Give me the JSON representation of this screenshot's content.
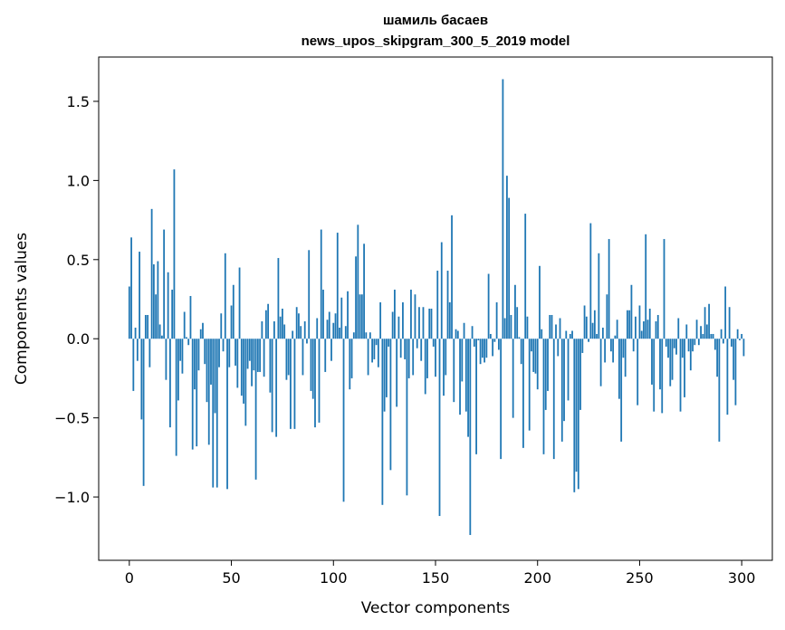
{
  "chart_data": {
    "type": "bar",
    "title_line1": "шамиль басаев",
    "title_line2": "news_upos_skipgram_300_5_2019 model",
    "xlabel": "Vector components",
    "ylabel": "Components values",
    "xlim": [
      -15,
      315
    ],
    "ylim": [
      -1.4,
      1.78
    ],
    "xticks": [
      0,
      50,
      100,
      150,
      200,
      250,
      300
    ],
    "xtick_labels": [
      "0",
      "50",
      "100",
      "150",
      "200",
      "250",
      "300"
    ],
    "yticks": [
      -1.0,
      -0.5,
      0.0,
      0.5,
      1.0,
      1.5
    ],
    "ytick_labels": [
      "−1.0",
      "−0.5",
      "0.0",
      "0.5",
      "1.0",
      "1.5"
    ],
    "grid": false,
    "bar_color": "#1f77b4",
    "x": "0..299",
    "values": [
      0.33,
      0.64,
      -0.33,
      0.07,
      -0.14,
      0.55,
      -0.51,
      -0.93,
      0.15,
      0.15,
      -0.18,
      0.82,
      0.47,
      0.28,
      0.49,
      0.09,
      0.02,
      0.69,
      -0.26,
      0.42,
      -0.56,
      0.31,
      1.07,
      -0.74,
      -0.39,
      -0.14,
      -0.22,
      0.17,
      0.01,
      -0.04,
      0.27,
      -0.7,
      -0.32,
      -0.68,
      -0.2,
      0.06,
      0.1,
      -0.16,
      -0.4,
      -0.67,
      -0.29,
      -0.94,
      -0.47,
      -0.94,
      -0.18,
      0.16,
      -0.08,
      0.54,
      -0.95,
      -0.18,
      0.21,
      0.34,
      -0.17,
      -0.31,
      0.45,
      -0.36,
      -0.41,
      -0.55,
      -0.19,
      -0.14,
      -0.3,
      -0.2,
      -0.89,
      -0.21,
      -0.21,
      0.11,
      -0.24,
      0.18,
      0.22,
      -0.34,
      -0.59,
      0.11,
      -0.62,
      0.51,
      0.14,
      0.19,
      0.09,
      -0.26,
      -0.23,
      -0.57,
      0.05,
      -0.57,
      0.2,
      0.16,
      0.08,
      -0.23,
      0.11,
      -0.03,
      0.56,
      -0.33,
      -0.38,
      -0.56,
      0.13,
      -0.53,
      0.69,
      0.31,
      -0.21,
      0.12,
      0.17,
      -0.14,
      0.1,
      0.16,
      0.67,
      0.07,
      0.26,
      -1.03,
      0.08,
      0.3,
      -0.32,
      -0.25,
      0.04,
      0.52,
      0.72,
      0.28,
      0.28,
      0.6,
      0.04,
      -0.23,
      0.04,
      -0.15,
      -0.13,
      -0.04,
      -0.18,
      0.23,
      -1.05,
      -0.46,
      -0.37,
      -0.05,
      -0.83,
      0.17,
      0.31,
      -0.43,
      0.14,
      -0.12,
      0.23,
      -0.13,
      -0.99,
      -0.25,
      0.31,
      -0.23,
      0.28,
      -0.06,
      0.2,
      -0.14,
      0.2,
      -0.35,
      -0.25,
      0.19,
      0.19,
      -0.05,
      -0.24,
      0.43,
      -1.12,
      0.61,
      -0.36,
      -0.23,
      0.43,
      0.23,
      0.78,
      -0.4,
      0.06,
      0.05,
      -0.48,
      -0.27,
      0.1,
      -0.46,
      -0.62,
      -1.24,
      0.08,
      -0.05,
      -0.73,
      -0.01,
      -0.16,
      -0.12,
      -0.15,
      -0.12,
      0.41,
      0.03,
      -0.11,
      -0.02,
      0.23,
      -0.07,
      -0.76,
      1.64,
      0.13,
      1.03,
      0.89,
      0.15,
      -0.5,
      0.34,
      0.2,
      0.01,
      -0.16,
      -0.69,
      0.79,
      0.14,
      -0.58,
      -0.08,
      -0.21,
      -0.22,
      -0.32,
      0.46,
      0.06,
      -0.73,
      -0.45,
      -0.33,
      0.15,
      0.15,
      -0.76,
      0.09,
      -0.11,
      0.13,
      -0.65,
      -0.52,
      0.05,
      -0.39,
      0.03,
      0.05,
      -0.97,
      -0.84,
      -0.95,
      -0.45,
      -0.09,
      0.21,
      0.14,
      -0.02,
      0.73,
      0.1,
      0.18,
      0.03,
      0.54,
      -0.3,
      0.07,
      -0.15,
      0.28,
      0.63,
      -0.08,
      -0.15,
      0.02,
      0.12,
      -0.38,
      -0.65,
      -0.12,
      -0.24,
      0.18,
      0.18,
      0.34,
      -0.08,
      0.14,
      -0.42,
      0.21,
      0.05,
      0.11,
      0.66,
      0.12,
      0.19,
      -0.29,
      -0.46,
      0.11,
      0.15,
      -0.32,
      -0.47,
      0.63,
      -0.05,
      -0.12,
      -0.3,
      -0.26,
      -0.06,
      -0.1,
      0.13,
      -0.46,
      -0.12,
      -0.37,
      0.09,
      -0.08,
      -0.2,
      -0.08,
      -0.04,
      0.12,
      -0.04,
      0.08,
      0.03,
      0.2,
      0.09,
      0.22,
      0.03,
      0.03,
      -0.07,
      -0.24,
      -0.65,
      0.06,
      -0.03,
      0.33,
      -0.48,
      0.2,
      -0.05,
      -0.26,
      -0.42,
      0.06,
      -0.01,
      0.03,
      -0.11
    ]
  }
}
